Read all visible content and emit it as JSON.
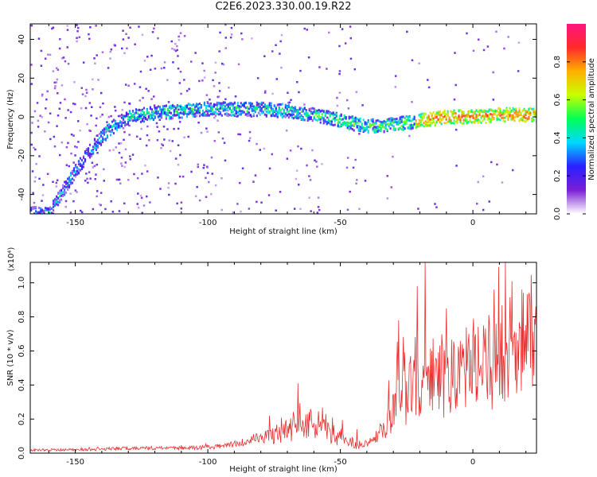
{
  "title": "C2E6.2023.330.00.19.R22",
  "chart_data": [
    {
      "type": "heatmap",
      "xlabel": "Height of straight line (km)",
      "ylabel": "Frequency (Hz)",
      "xlim": [
        -167,
        24
      ],
      "ylim": [
        -50,
        48
      ],
      "xticks": [
        -150,
        -100,
        -50,
        0
      ],
      "yticks": [
        -40,
        -20,
        0,
        20,
        40
      ],
      "colorbar": {
        "label": "Normalized spectral amplitude",
        "range": [
          0,
          1
        ],
        "ticks": [
          "0.0",
          "0.2",
          "0.4",
          "0.6",
          "0.8"
        ],
        "colors": [
          "#ffffff",
          "#7a1fd6",
          "#2a1fff",
          "#00d8ff",
          "#00ff55",
          "#c8ff00",
          "#ffb000",
          "#ff2a2a",
          "#ff1480"
        ]
      },
      "ridge": [
        {
          "x": -160,
          "y": -50
        },
        {
          "x": -155,
          "y": -38
        },
        {
          "x": -150,
          "y": -28
        },
        {
          "x": -145,
          "y": -18
        },
        {
          "x": -140,
          "y": -10
        },
        {
          "x": -135,
          "y": -4
        },
        {
          "x": -130,
          "y": 0
        },
        {
          "x": -120,
          "y": 2
        },
        {
          "x": -110,
          "y": 3
        },
        {
          "x": -100,
          "y": 4
        },
        {
          "x": -90,
          "y": 4
        },
        {
          "x": -80,
          "y": 4
        },
        {
          "x": -70,
          "y": 3
        },
        {
          "x": -60,
          "y": 1
        },
        {
          "x": -50,
          "y": -2
        },
        {
          "x": -40,
          "y": -5
        },
        {
          "x": -30,
          "y": -4
        },
        {
          "x": -20,
          "y": -2
        },
        {
          "x": -10,
          "y": 0
        },
        {
          "x": 0,
          "y": 0
        },
        {
          "x": 10,
          "y": 1
        },
        {
          "x": 24,
          "y": 1
        }
      ]
    },
    {
      "type": "line",
      "xlabel": "Height of straight line (km)",
      "ylabel": "SNR (10 * v/v)",
      "scale_label": "(x10⁴)",
      "xlim": [
        -167,
        24
      ],
      "ylim": [
        0,
        1.12
      ],
      "xticks": [
        -150,
        -100,
        -50,
        0
      ],
      "yticks": [
        "0.0",
        "0.2",
        "0.4",
        "0.6",
        "0.8",
        "1.0"
      ],
      "series": [
        {
          "color": "#e83030",
          "envelope": [
            {
              "x": -167,
              "y": 0.02
            },
            {
              "x": -150,
              "y": 0.02
            },
            {
              "x": -130,
              "y": 0.03
            },
            {
              "x": -110,
              "y": 0.03
            },
            {
              "x": -95,
              "y": 0.04
            },
            {
              "x": -85,
              "y": 0.07
            },
            {
              "x": -75,
              "y": 0.13
            },
            {
              "x": -68,
              "y": 0.2
            },
            {
              "x": -62,
              "y": 0.22
            },
            {
              "x": -56,
              "y": 0.18
            },
            {
              "x": -50,
              "y": 0.1
            },
            {
              "x": -42,
              "y": 0.06
            },
            {
              "x": -36,
              "y": 0.12
            },
            {
              "x": -32,
              "y": 0.25
            },
            {
              "x": -28,
              "y": 0.45
            },
            {
              "x": -24,
              "y": 0.52
            },
            {
              "x": -18,
              "y": 0.55
            },
            {
              "x": -12,
              "y": 0.58
            },
            {
              "x": -6,
              "y": 0.58
            },
            {
              "x": 0,
              "y": 0.62
            },
            {
              "x": 6,
              "y": 0.66
            },
            {
              "x": 12,
              "y": 0.72
            },
            {
              "x": 18,
              "y": 0.8
            },
            {
              "x": 24,
              "y": 0.86
            }
          ],
          "peaks": [
            {
              "x": -66,
              "y": 0.41
            },
            {
              "x": -28,
              "y": 0.78
            },
            {
              "x": -21,
              "y": 0.98
            },
            {
              "x": -18,
              "y": 1.12
            },
            {
              "x": -10,
              "y": 0.85
            },
            {
              "x": 8,
              "y": 0.96
            }
          ]
        }
      ]
    }
  ]
}
